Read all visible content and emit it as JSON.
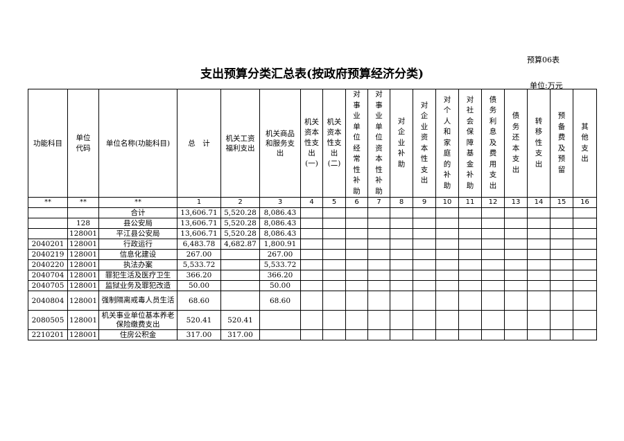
{
  "form_number": "预算06表",
  "title": "支出预算分类汇总表(按政府预算经济分类)",
  "unit": "单位:万元",
  "headers": [
    "功能科目",
    "单位代码",
    "单位名称(功能科目)",
    "总　计",
    "机关工资福利支出",
    "机关商品和服务支出",
    "机关资本性支出(一)",
    "机关资本性支出(二)",
    "对事业单位经常性补助",
    "对事业单位资本性补助",
    "对企业补助",
    "对企业资本性支出",
    "对个人和家庭的补助",
    "对社会保障基金补助",
    "债务利息及费用支出",
    "债务还本支出",
    "转移性支出",
    "预备费及预留",
    "其他支出"
  ],
  "column_numbers": [
    "**",
    "**",
    "**",
    "1",
    "2",
    "3",
    "4",
    "5",
    "6",
    "7",
    "8",
    "9",
    "10",
    "11",
    "12",
    "13",
    "14",
    "15",
    "16"
  ],
  "rows": [
    [
      "",
      "",
      "合计",
      "13,606.71",
      "5,520.28",
      "8,086.43"
    ],
    [
      "",
      "128",
      "县公安局",
      "13,606.71",
      "5,520.28",
      "8,086.43"
    ],
    [
      "",
      "128001",
      "平江县公安局",
      "13,606.71",
      "5,520.28",
      "8,086.43"
    ],
    [
      "2040201",
      "128001",
      "行政运行",
      "6,483.78",
      "4,682.87",
      "1,800.91"
    ],
    [
      "2040219",
      "128001",
      "信息化建设",
      "267.00",
      "",
      "267.00"
    ],
    [
      "2040220",
      "128001",
      "执法办案",
      "5,533.72",
      "",
      "5,533.72"
    ],
    [
      "2040704",
      "128001",
      "罪犯生活及医疗卫生",
      "366.20",
      "",
      "366.20"
    ],
    [
      "2040705",
      "128001",
      "监狱业务及罪犯改造",
      "50.00",
      "",
      "50.00"
    ],
    [
      "2040804",
      "128001",
      "强制隔离戒毒人员生活",
      "68.60",
      "",
      "68.60"
    ],
    [
      "2080505",
      "128001",
      "机关事业单位基本养老保险缴费支出",
      "520.41",
      "520.41",
      ""
    ],
    [
      "2210201",
      "128001",
      "住房公积金",
      "317.00",
      "317.00",
      ""
    ]
  ]
}
